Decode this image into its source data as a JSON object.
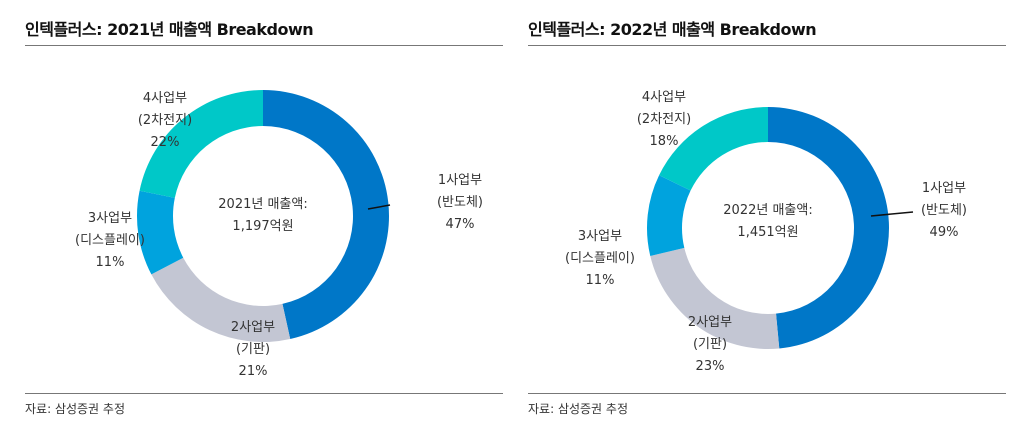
{
  "chart_data": [
    {
      "type": "pie",
      "title": "인텍플러스: 2021년 매출액 Breakdown",
      "center_text": [
        "2021년 매출액:",
        "1,197억원"
      ],
      "categories": [
        "1사업부",
        "2사업부",
        "3사업부",
        "4사업부"
      ],
      "sublabels": [
        "(반도체)",
        "(기판)",
        "(디스플레이)",
        "(2차전지)"
      ],
      "values": [
        47,
        21,
        11,
        22
      ],
      "value_labels": [
        "47%",
        "21%",
        "11%",
        "22%"
      ],
      "colors": [
        "#0077C8",
        "#C3C6D3",
        "#00A3DE",
        "#00C8C8"
      ],
      "source": "자료: 삼성증권 추정"
    },
    {
      "type": "pie",
      "title": "인텍플러스: 2022년 매출액 Breakdown",
      "center_text": [
        "2022년 매출액:",
        "1,451억원"
      ],
      "categories": [
        "1사업부",
        "2사업부",
        "3사업부",
        "4사업부"
      ],
      "sublabels": [
        "(반도체)",
        "(기판)",
        "(디스플레이)",
        "(2차전지)"
      ],
      "values": [
        49,
        23,
        11,
        18
      ],
      "value_labels": [
        "49%",
        "23%",
        "11%",
        "18%"
      ],
      "colors": [
        "#0077C8",
        "#C3C6D3",
        "#00A3DE",
        "#00C8C8"
      ],
      "source": "자료: 삼성증권 추정"
    }
  ]
}
